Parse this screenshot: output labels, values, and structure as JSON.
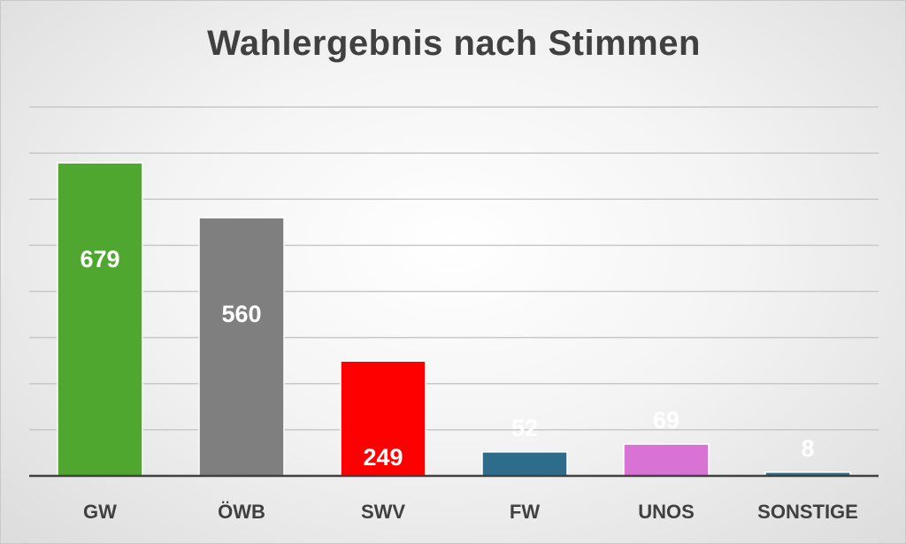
{
  "chart_data": {
    "type": "bar",
    "title": "Wahlergebnis nach Stimmen",
    "xlabel": "",
    "ylabel": "",
    "categories": [
      "GW",
      "ÖWB",
      "SWV",
      "FW",
      "UNOS",
      "SONSTIGE"
    ],
    "values": [
      679,
      560,
      249,
      52,
      69,
      8
    ],
    "colors": [
      "#4fa72f",
      "#7f7f7f",
      "#ff0000",
      "#2e6c8c",
      "#d872d4",
      "#2e6c8c"
    ],
    "ylim": [
      0,
      800
    ],
    "grid": true,
    "legend": "none"
  }
}
